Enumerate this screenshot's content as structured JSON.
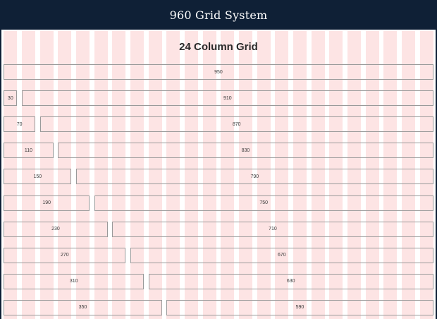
{
  "header": {
    "title": "960 Grid System"
  },
  "page": {
    "title": "24 Column Grid"
  },
  "grid": {
    "columns": 24,
    "stripe_color": "#fde4e4",
    "rows": [
      {
        "cells": [
          "950"
        ]
      },
      {
        "cells": [
          "30",
          "910"
        ]
      },
      {
        "cells": [
          "70",
          "870"
        ]
      },
      {
        "cells": [
          "110",
          "830"
        ]
      },
      {
        "cells": [
          "150",
          "790"
        ]
      },
      {
        "cells": [
          "190",
          "750"
        ]
      },
      {
        "cells": [
          "230",
          "710"
        ]
      },
      {
        "cells": [
          "270",
          "670"
        ]
      },
      {
        "cells": [
          "310",
          "630"
        ]
      },
      {
        "cells": [
          "350",
          "590"
        ]
      }
    ]
  }
}
